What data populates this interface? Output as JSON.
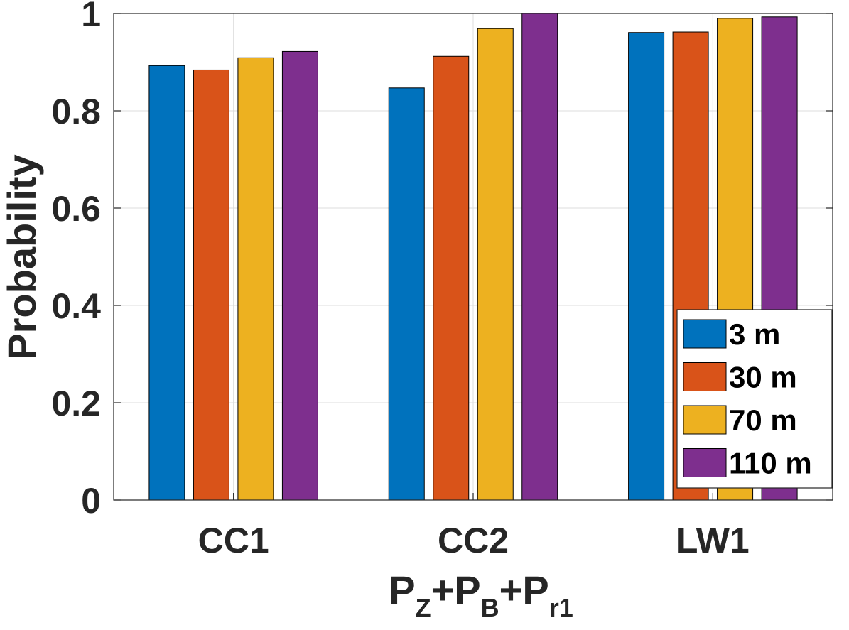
{
  "chart_data": {
    "type": "bar",
    "title": "",
    "categories": [
      "CC1",
      "CC2",
      "LW1"
    ],
    "series": [
      {
        "name": "3 m",
        "color": "#0072BD",
        "values": [
          0.893,
          0.847,
          0.961
        ]
      },
      {
        "name": "30 m",
        "color": "#D95319",
        "values": [
          0.884,
          0.912,
          0.962
        ]
      },
      {
        "name": "70 m",
        "color": "#EDB120",
        "values": [
          0.909,
          0.969,
          0.99
        ]
      },
      {
        "name": "110 m",
        "color": "#7E2F8E",
        "values": [
          0.922,
          1.0,
          0.993
        ]
      }
    ],
    "ylabel": "Probability",
    "xlabel": {
      "parts": [
        {
          "text": "P",
          "sub": "Z"
        },
        {
          "text": "+P",
          "sub": "B"
        },
        {
          "text": "+P",
          "sub": "r1"
        }
      ]
    },
    "ylim": [
      0,
      1
    ],
    "yticks": [
      0,
      0.2,
      0.4,
      0.6,
      0.8,
      1
    ],
    "ytick_labels": [
      "0",
      "0.2",
      "0.4",
      "0.6",
      "0.8",
      "1"
    ],
    "grid": true,
    "legend_position": "bottom-right"
  }
}
